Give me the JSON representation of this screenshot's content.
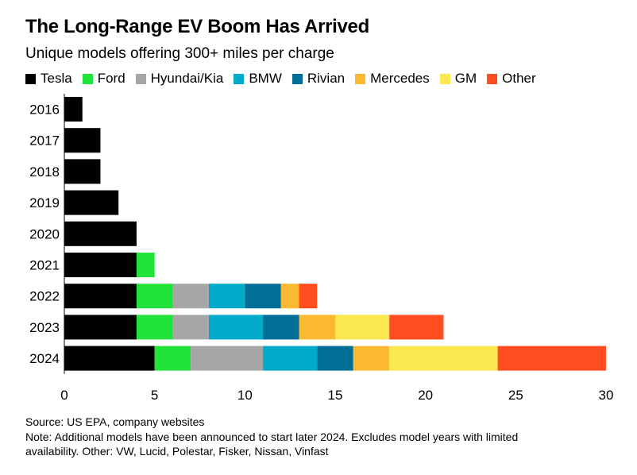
{
  "title": "The Long-Range EV Boom Has Arrived",
  "subtitle": "Unique models offering 300+ miles per charge",
  "source": "Source: US EPA, company websites",
  "note_line1": "Note: Additional models have been announced to start later 2024. Excludes model years with limited",
  "note_line2": "availability. Other: VW, Lucid, Polestar, Fisker, Nissan, Vinfast",
  "chart_data": {
    "type": "bar",
    "orientation": "horizontal",
    "stacked": true,
    "categories": [
      "2016",
      "2017",
      "2018",
      "2019",
      "2020",
      "2021",
      "2022",
      "2023",
      "2024"
    ],
    "xlim": [
      0,
      30
    ],
    "xticks": [
      0,
      5,
      10,
      15,
      20,
      25,
      30
    ],
    "grid": false,
    "legend_position": "top",
    "series": [
      {
        "name": "Tesla",
        "color": "#000000",
        "values": [
          1,
          2,
          2,
          3,
          4,
          4,
          4,
          4,
          5
        ]
      },
      {
        "name": "Ford",
        "color": "#22e339",
        "values": [
          0,
          0,
          0,
          0,
          0,
          1,
          2,
          2,
          2
        ]
      },
      {
        "name": "Hyundai/Kia",
        "color": "#a6a6a6",
        "values": [
          0,
          0,
          0,
          0,
          0,
          0,
          2,
          2,
          4
        ]
      },
      {
        "name": "BMW",
        "color": "#00aac8",
        "values": [
          0,
          0,
          0,
          0,
          0,
          0,
          2,
          3,
          3
        ]
      },
      {
        "name": "Rivian",
        "color": "#006e96",
        "values": [
          0,
          0,
          0,
          0,
          0,
          0,
          2,
          2,
          2
        ]
      },
      {
        "name": "Mercedes",
        "color": "#fbb830",
        "values": [
          0,
          0,
          0,
          0,
          0,
          0,
          1,
          2,
          2
        ]
      },
      {
        "name": "GM",
        "color": "#fbe74f",
        "values": [
          0,
          0,
          0,
          0,
          0,
          0,
          0,
          3,
          6
        ]
      },
      {
        "name": "Other",
        "color": "#ff4d1f",
        "values": [
          0,
          0,
          0,
          0,
          0,
          0,
          1,
          3,
          6
        ]
      }
    ]
  }
}
